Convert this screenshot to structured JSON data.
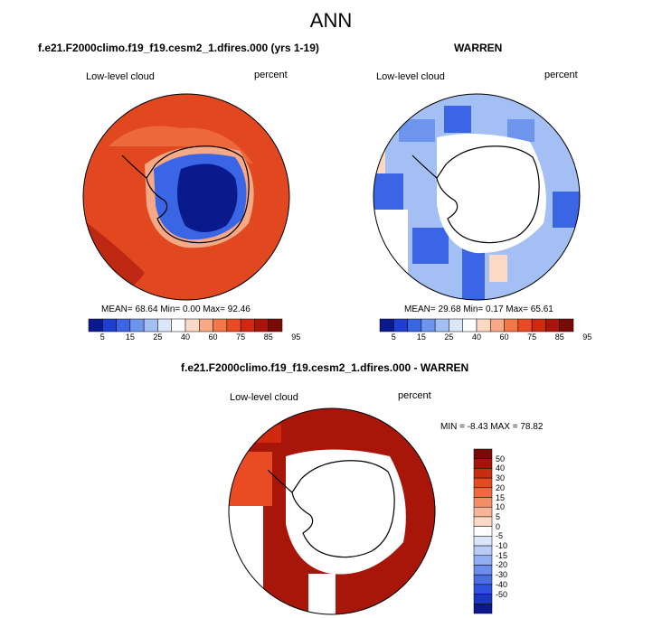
{
  "figure": {
    "title": "ANN"
  },
  "panels": [
    {
      "id": "model",
      "title": "f.e21.F2000climo.f19_f19.cesm2_1.dfires.000 (yrs 1-19)",
      "variable": "Low-level cloud",
      "units": "percent",
      "stats": "MEAN=  68.64  Min=   0.00  Max=  92.46"
    },
    {
      "id": "obs",
      "title": "WARREN",
      "variable": "Low-level cloud",
      "units": "percent",
      "stats": "MEAN=  29.68  Min=   0.17  Max=  65.61"
    },
    {
      "id": "diff",
      "title": "f.e21.F2000climo.f19_f19.cesm2_1.dfires.000 - WARREN",
      "variable": "Low-level cloud",
      "units": "percent",
      "stats": "MIN =  -8.43 MAX =  78.82"
    }
  ],
  "colorbar_abs": {
    "colors": [
      "#0a1a8c",
      "#1f3fd0",
      "#3a66e6",
      "#6e95ee",
      "#a4bff4",
      "#dbe6fb",
      "#ffffff",
      "#fbd9c6",
      "#f7a885",
      "#f27848",
      "#ea4b22",
      "#d0290d",
      "#a8160a",
      "#7a0a06"
    ],
    "tick_labels": [
      "5",
      "15",
      "25",
      "40",
      "60",
      "75",
      "85",
      "95"
    ]
  },
  "colorbar_diff": {
    "colors": [
      "#0a1a8c",
      "#1a35c8",
      "#2f52de",
      "#4a6de6",
      "#6e8ded",
      "#93aef2",
      "#b8ccf7",
      "#dbe6fb",
      "#ffffff",
      "#fbd9c6",
      "#f8b497",
      "#f48d66",
      "#ef6a3f",
      "#e54b22",
      "#c92d10",
      "#a0160a",
      "#7a0a06"
    ],
    "tick_labels": [
      "50",
      "40",
      "30",
      "20",
      "15",
      "10",
      "5",
      "0",
      "-5",
      "-10",
      "-15",
      "-20",
      "-30",
      "-40",
      "-50"
    ]
  },
  "map_colors": {
    "model_background": "#e2481f",
    "model_interior": "#0a1a8c",
    "obs_background": "#a4bff4",
    "diff_background": "#a8160a",
    "land_outline": "#000000"
  }
}
